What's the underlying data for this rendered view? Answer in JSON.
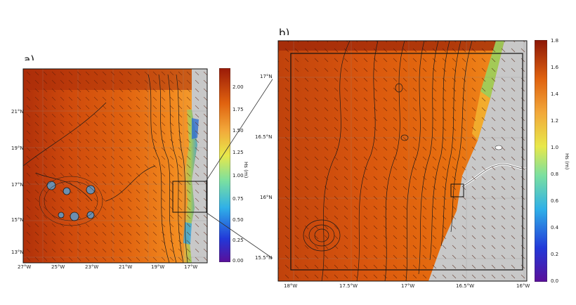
{
  "panel_a": {
    "label": "a)",
    "colorbar_title": "Hs (m)",
    "colorbar_ticks": [
      "0.00",
      "0.25",
      "0.50",
      "0.75",
      "1.00",
      "1.25",
      "1.50",
      "1.75",
      "2.00"
    ],
    "x_ticks": [
      "27°W",
      "25°W",
      "23°W",
      "21°W",
      "19°W",
      "17°W"
    ],
    "y_ticks": [
      "21°N",
      "19°N",
      "17°N",
      "15°N",
      "13°N"
    ],
    "colorbar_range": [
      0,
      2.2
    ]
  },
  "panel_b": {
    "label": "b)",
    "colorbar_title": "Hs (m)",
    "colorbar_ticks": [
      "1.8",
      "1.6",
      "1.4",
      "1.2",
      "1.0",
      "0.8",
      "0.6",
      "0.4",
      "0.2",
      "0.0"
    ],
    "x_ticks": [
      "18°W",
      "17.5°W",
      "17°W",
      "16.5°W",
      "16°W"
    ],
    "y_ticks": [
      "17°N",
      "16.5°N",
      "16°N",
      "15.5°N"
    ],
    "colorbar_range": [
      0,
      1.8
    ]
  },
  "colors": {
    "sea_dark": "#a8290a",
    "sea_mid": "#d9560e",
    "sea_light": "#f07a1a",
    "land": "#c8c8c8",
    "contour": "#1a1a1a"
  }
}
